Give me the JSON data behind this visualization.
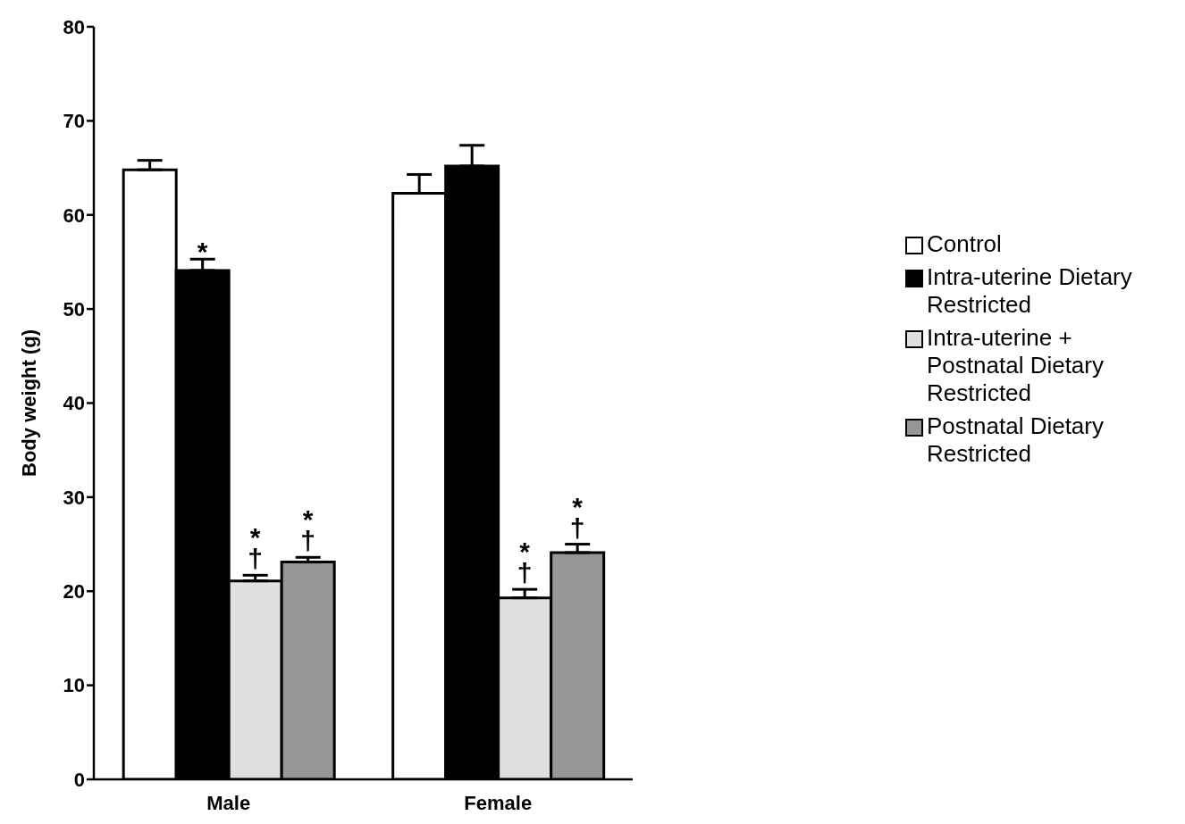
{
  "chart_data": {
    "type": "bar",
    "ylabel": "Body weight (g)",
    "categories": [
      "Male",
      "Female"
    ],
    "series": [
      {
        "name": "Control",
        "color": "#ffffff",
        "values": [
          64.8,
          62.3
        ],
        "errors": [
          [
            64.8,
            65.8
          ],
          [
            62.3,
            64.3
          ]
        ]
      },
      {
        "name": "Intra-uterine Dietary Restricted",
        "color": "#000000",
        "values": [
          54.1,
          65.2
        ],
        "errors": [
          [
            54.1,
            55.3
          ],
          [
            65.2,
            67.4
          ]
        ],
        "value_labels": [
          "*",
          null
        ]
      },
      {
        "name": "Intra-uterine + Postnatal Dietary Restricted",
        "color": "#e0e0e0",
        "values": [
          21.1,
          19.3
        ],
        "errors": [
          [
            21.1,
            21.7
          ],
          [
            19.3,
            20.2
          ]
        ],
        "value_labels": [
          "*\n†",
          "*\n†"
        ]
      },
      {
        "name": "Postnatal Dietary Restricted",
        "color": "#969696",
        "values": [
          23.1,
          24.1
        ],
        "errors": [
          [
            23.1,
            23.6
          ],
          [
            24.1,
            25.0
          ]
        ],
        "value_labels": [
          "*\n†",
          "*\n†"
        ]
      }
    ],
    "ylim": [
      0,
      80
    ],
    "yticks": [
      0,
      10,
      20,
      30,
      40,
      50,
      60,
      70,
      80
    ],
    "grid": false,
    "legend": "right"
  }
}
